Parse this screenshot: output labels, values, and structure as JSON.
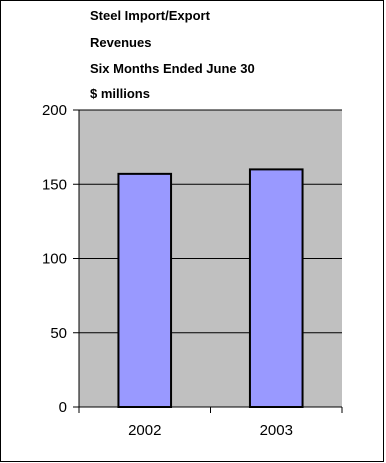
{
  "chart_data": {
    "type": "bar",
    "title_lines": [
      "Steel Import/Export",
      "Revenues",
      "Six Months Ended June 30",
      "$ millions"
    ],
    "categories": [
      "2002",
      "2003"
    ],
    "series": [
      {
        "values": [
          157,
          160
        ]
      }
    ],
    "xlabel": "",
    "ylabel": "",
    "ylim": [
      0,
      200
    ],
    "yticks": [
      0,
      50,
      100,
      150,
      200
    ],
    "grid": true,
    "colors": {
      "plot_background": "#c0c0c0",
      "bar_fill": "#9999ff",
      "bar_stroke": "#000000",
      "gridline": "#000000"
    }
  }
}
